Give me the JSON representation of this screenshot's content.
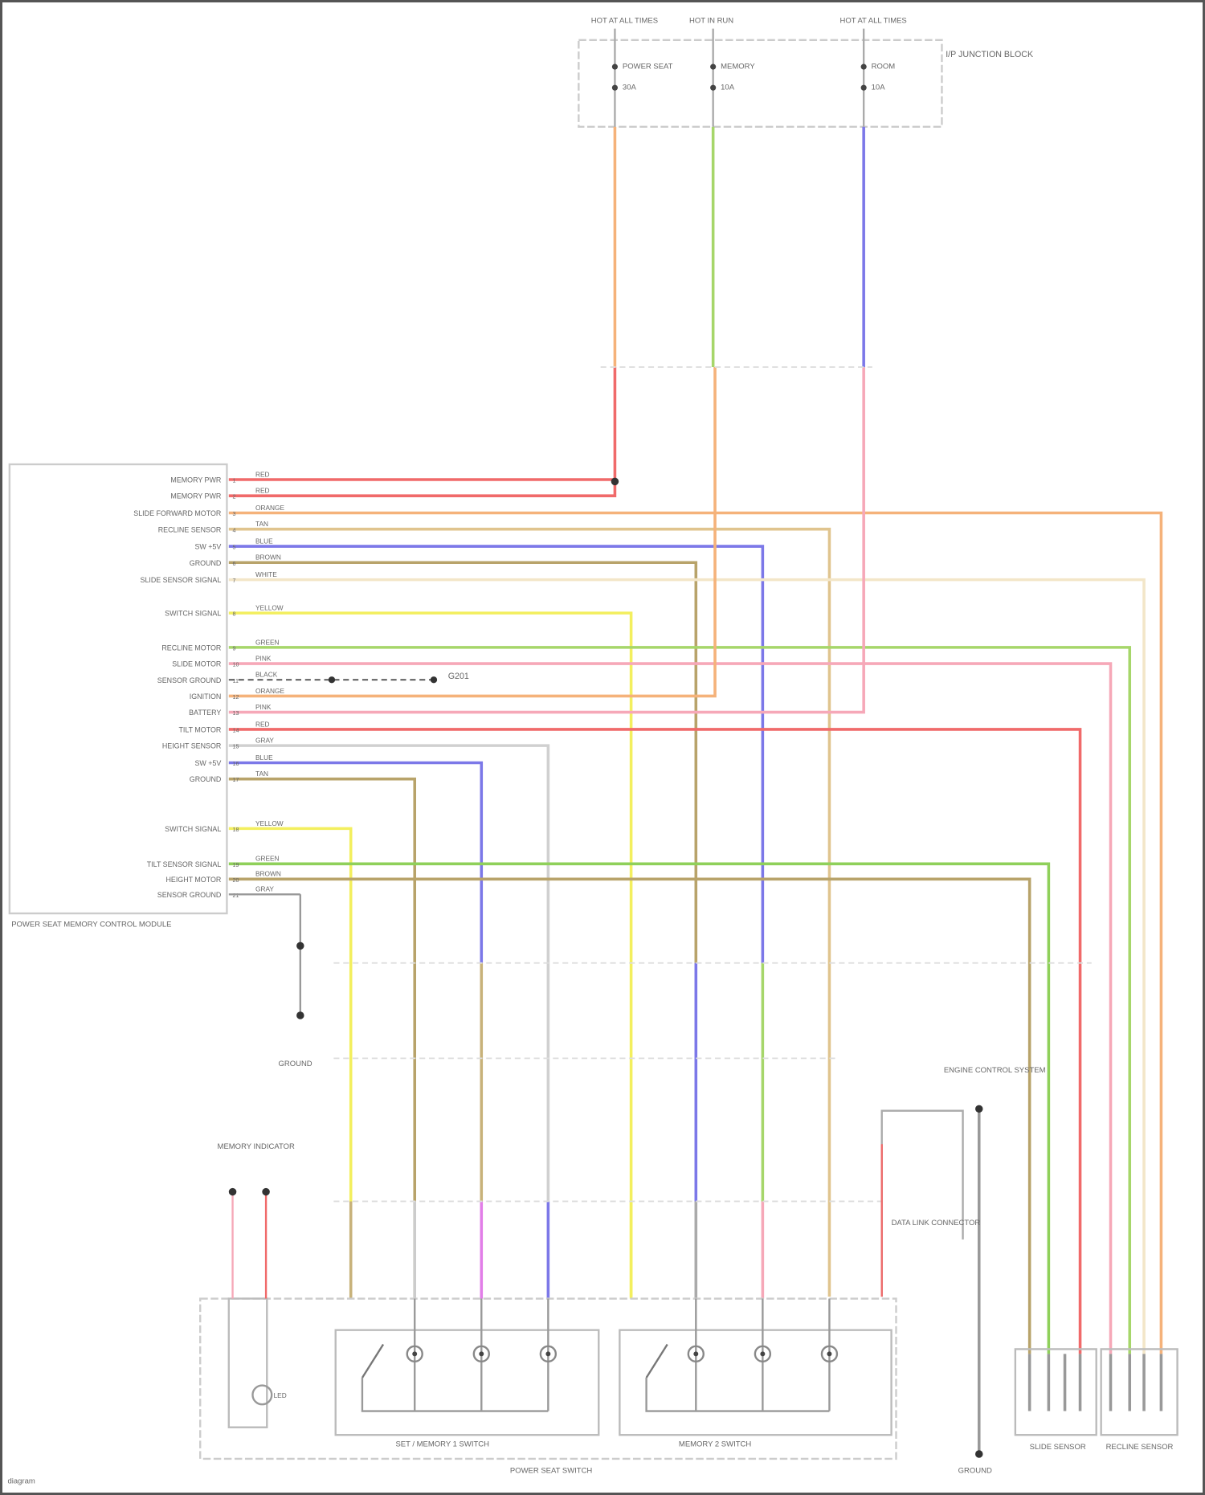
{
  "diagram": {
    "module": {
      "label": "POWER SEAT MEMORY CONTROL MODULE",
      "pins": [
        {
          "label": "MEMORY PWR",
          "wire": "RED",
          "color": "#f06a6a"
        },
        {
          "label": "MEMORY PWR",
          "wire": "RED",
          "color": "#f06a6a"
        },
        {
          "label": "SLIDE FORWARD MOTOR",
          "wire": "ORANGE",
          "color": "#f5b27a"
        },
        {
          "label": "RECLINE SENSOR",
          "wire": "TAN",
          "color": "#e0c48e"
        },
        {
          "label": "SW +5V",
          "wire": "BLUE",
          "color": "#7c78e8"
        },
        {
          "label": "GROUND",
          "wire": "BROWN",
          "color": "#b8a36a"
        },
        {
          "label": "SLIDE SENSOR SIGNAL",
          "wire": "WHITE",
          "color": "#f3e6c8"
        },
        {
          "label": "SWITCH SIGNAL",
          "wire": "YELLOW",
          "color": "#f3ef5e"
        },
        {
          "label": "RECLINE MOTOR",
          "wire": "GREEN",
          "color": "#a6d66a"
        },
        {
          "label": "SLIDE MOTOR",
          "wire": "PINK",
          "color": "#f6a8b8"
        },
        {
          "label": "SENSOR GROUND",
          "wire": "BLACK",
          "color": "#444444"
        },
        {
          "label": "IGNITION",
          "wire": "ORANGE",
          "color": "#f5b27a"
        },
        {
          "label": "BATTERY",
          "wire": "PINK",
          "color": "#f6a8b8"
        },
        {
          "label": "TILT MOTOR",
          "wire": "RED",
          "color": "#f06a6a"
        },
        {
          "label": "HEIGHT SENSOR",
          "wire": "GRAY",
          "color": "#d0d0d0"
        },
        {
          "label": "SW +5V",
          "wire": "BLUE",
          "color": "#7c78e8"
        },
        {
          "label": "GROUND",
          "wire": "TAN",
          "color": "#b8a36a"
        },
        {
          "label": "SWITCH SIGNAL",
          "wire": "YELLOW",
          "color": "#f3ef5e"
        },
        {
          "label": "TILT SENSOR SIGNAL",
          "wire": "GREEN",
          "color": "#8fd05a"
        },
        {
          "label": "HEIGHT MOTOR",
          "wire": "BROWN",
          "color": "#b8a36a"
        },
        {
          "label": "SENSOR GROUND",
          "wire": "GRAY",
          "color": "#999999"
        }
      ],
      "splice_label": "G201"
    },
    "fuse_block": {
      "label": "I/P JUNCTION BLOCK",
      "fuses": [
        {
          "label": "POWER SEAT",
          "rating": "30A"
        },
        {
          "label": "MEMORY",
          "rating": "10A"
        },
        {
          "label": "ROOM",
          "rating": "10A"
        }
      ],
      "sources": [
        "HOT AT ALL TIMES",
        "HOT IN RUN",
        "HOT AT ALL TIMES"
      ]
    },
    "switch_assembly": {
      "label": "POWER SEAT SWITCH",
      "left_switch": "SET / MEMORY 1 SWITCH",
      "right_switch": "MEMORY 2 SWITCH",
      "indicator": "LED"
    },
    "components": {
      "ground": "GROUND",
      "motor": "MEMORY INDICATOR",
      "data_link": "DATA LINK CONNECTOR",
      "engine_system": "ENGINE CONTROL SYSTEM",
      "slide_sensor": "SLIDE SENSOR",
      "recline_sensor": "RECLINE SENSOR",
      "ground_point": "GROUND"
    },
    "footer": "diagram"
  },
  "colors": {
    "red": "#f06a6a",
    "orange": "#f5b27a",
    "green": "#a6d66a",
    "blue": "#7c78e8",
    "pink": "#f6a8b8",
    "yellow": "#f3ef5e",
    "gray": "#999999",
    "tan": "#c8b27a",
    "frame": "#555555"
  }
}
